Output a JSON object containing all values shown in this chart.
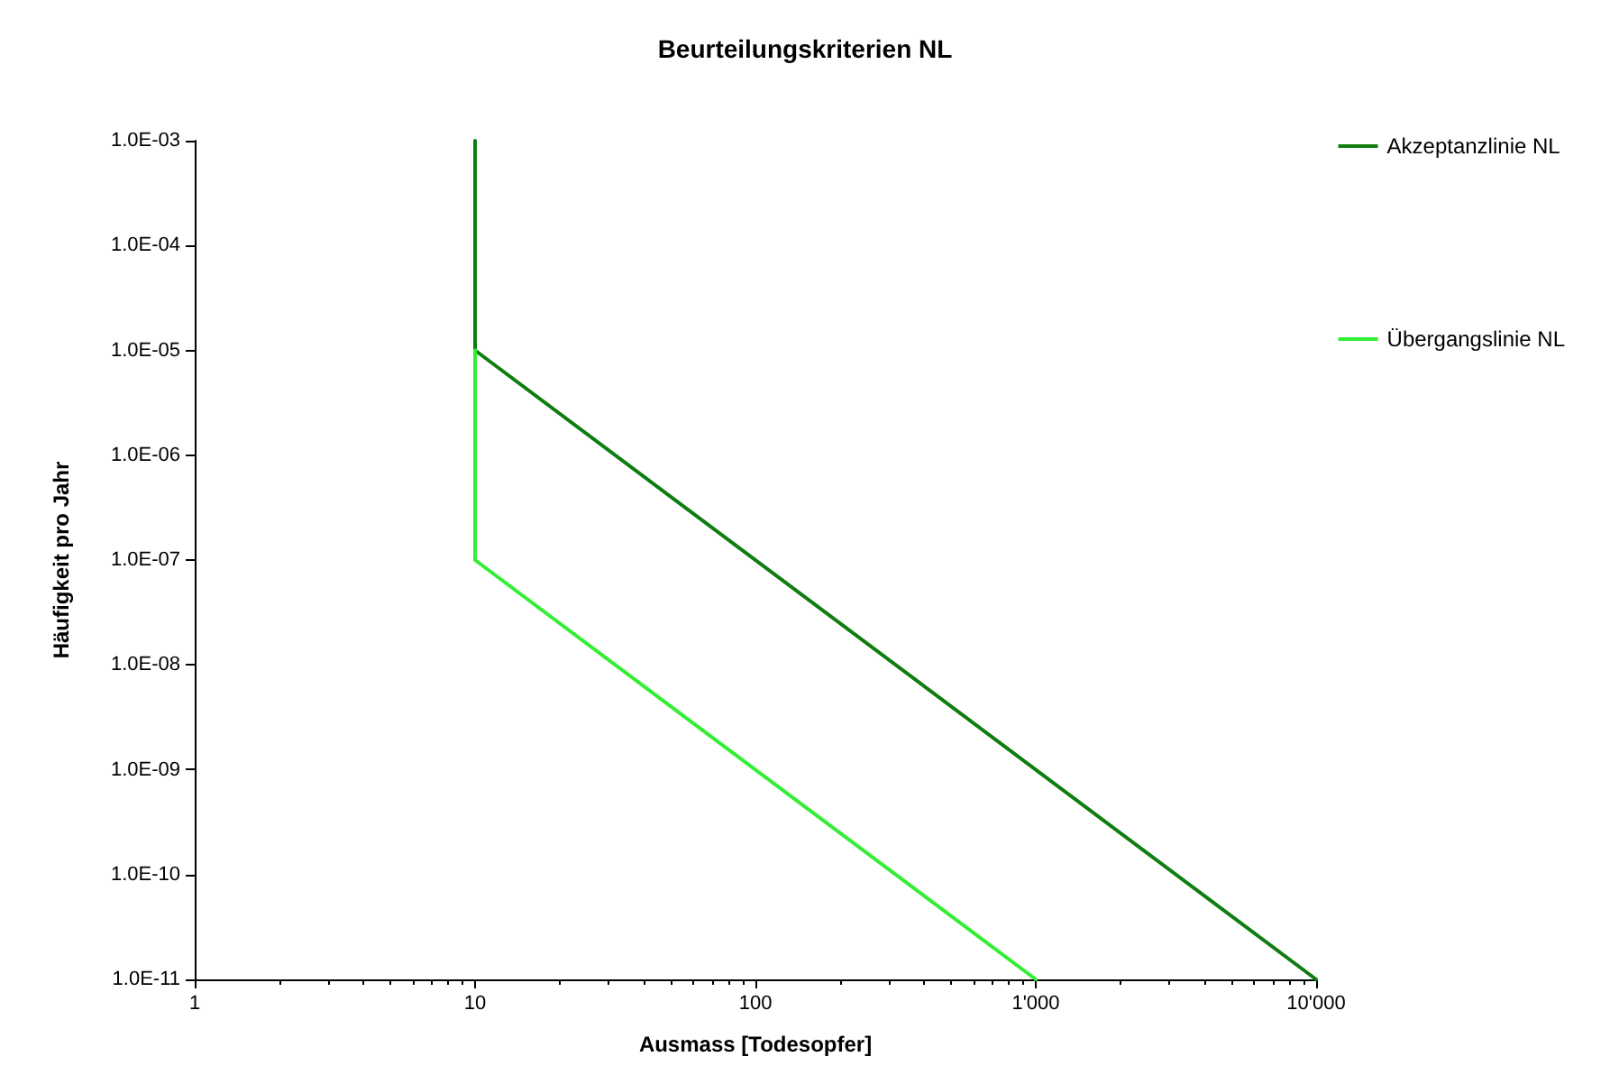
{
  "chart_data": {
    "type": "line",
    "title": "Beurteilungskriterien NL",
    "xlabel": "Ausmass [Todesopfer]",
    "ylabel": "Häufigkeit pro Jahr",
    "log": "xy",
    "marker": "none",
    "line_style": "solid",
    "grid": false,
    "legend": "right",
    "xlim": [
      1,
      10000
    ],
    "xticks": [
      1,
      10,
      100,
      {
        "value": 1000,
        "label": "1'000"
      },
      {
        "value": 10000,
        "label": "10'000"
      }
    ],
    "ylim": [
      1e-11,
      0.001
    ],
    "yticks": [
      {
        "value": 1e-11,
        "label": "1.0E-11"
      },
      {
        "value": 1e-10,
        "label": "1.0E-10"
      },
      {
        "value": 1e-09,
        "label": "1.0E-09"
      },
      {
        "value": 1e-08,
        "label": "1.0E-08"
      },
      {
        "value": 1e-07,
        "label": "1.0E-07"
      },
      {
        "value": 1e-06,
        "label": "1.0E-06"
      },
      {
        "value": 1e-05,
        "label": "1.0E-05"
      },
      {
        "value": 0.0001,
        "label": "1.0E-04"
      },
      {
        "value": 0.001,
        "label": "1.0E-03"
      }
    ],
    "series": [
      {
        "name": "Akzeptanzlinie NL",
        "color": "#0f7d0f",
        "x": [
          10,
          10,
          10000
        ],
        "values": [
          0.001,
          1e-05,
          1e-11
        ]
      },
      {
        "name": "Übergangslinie NL",
        "color": "#33ee33",
        "x": [
          10,
          10,
          1000
        ],
        "values": [
          1e-05,
          1e-07,
          1e-11
        ]
      }
    ]
  }
}
